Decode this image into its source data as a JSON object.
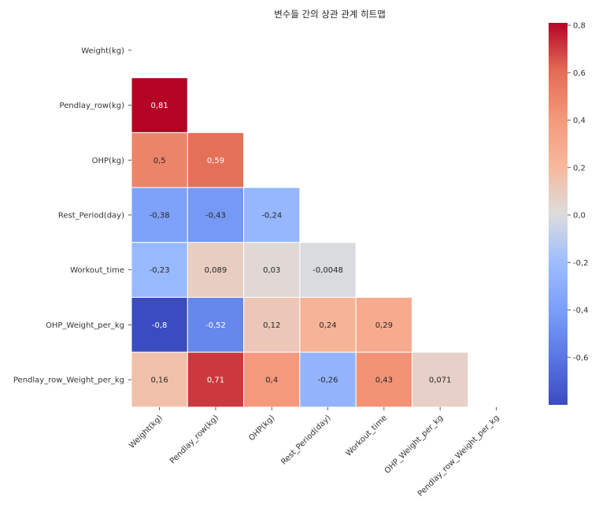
{
  "chart_data": {
    "type": "heatmap",
    "title": "변수들 간의 상관 관계 히트맵",
    "variables": [
      "Weight(kg)",
      "Pendlay_row(kg)",
      "OHP(kg)",
      "Rest_Period(day)",
      "Workout_time",
      "OHP_Weight_per_kg",
      "Pendlay_row_Weight_per_kg"
    ],
    "mask": "upper-triangle-including-diagonal",
    "colormap": "coolwarm",
    "vmin": -0.8,
    "vmax": 0.81,
    "colorbar_ticks": [
      0.8,
      0.6,
      0.4,
      0.2,
      0.0,
      -0.2,
      -0.4,
      -0.6
    ],
    "colorbar_tick_labels": [
      "0,8",
      "0,6",
      "0,4",
      "0,2",
      "0,0",
      "-0,2",
      "-0,4",
      "-0,6"
    ],
    "cells": [
      {
        "row": 1,
        "col": 0,
        "value": 0.81,
        "label": "0,81"
      },
      {
        "row": 2,
        "col": 0,
        "value": 0.5,
        "label": "0,5"
      },
      {
        "row": 2,
        "col": 1,
        "value": 0.59,
        "label": "0,59"
      },
      {
        "row": 3,
        "col": 0,
        "value": -0.38,
        "label": "-0,38"
      },
      {
        "row": 3,
        "col": 1,
        "value": -0.43,
        "label": "-0,43"
      },
      {
        "row": 3,
        "col": 2,
        "value": -0.24,
        "label": "-0,24"
      },
      {
        "row": 4,
        "col": 0,
        "value": -0.23,
        "label": "-0,23"
      },
      {
        "row": 4,
        "col": 1,
        "value": 0.089,
        "label": "0,089"
      },
      {
        "row": 4,
        "col": 2,
        "value": 0.03,
        "label": "0,03"
      },
      {
        "row": 4,
        "col": 3,
        "value": -0.0048,
        "label": "-0,0048"
      },
      {
        "row": 5,
        "col": 0,
        "value": -0.8,
        "label": "-0,8"
      },
      {
        "row": 5,
        "col": 1,
        "value": -0.52,
        "label": "-0,52"
      },
      {
        "row": 5,
        "col": 2,
        "value": 0.12,
        "label": "0,12"
      },
      {
        "row": 5,
        "col": 3,
        "value": 0.24,
        "label": "0,24"
      },
      {
        "row": 5,
        "col": 4,
        "value": 0.29,
        "label": "0,29"
      },
      {
        "row": 6,
        "col": 0,
        "value": 0.16,
        "label": "0,16"
      },
      {
        "row": 6,
        "col": 1,
        "value": 0.71,
        "label": "0,71"
      },
      {
        "row": 6,
        "col": 2,
        "value": 0.4,
        "label": "0,4"
      },
      {
        "row": 6,
        "col": 3,
        "value": -0.26,
        "label": "-0,26"
      },
      {
        "row": 6,
        "col": 4,
        "value": 0.43,
        "label": "0,43"
      },
      {
        "row": 6,
        "col": 5,
        "value": 0.071,
        "label": "0,071"
      }
    ]
  }
}
